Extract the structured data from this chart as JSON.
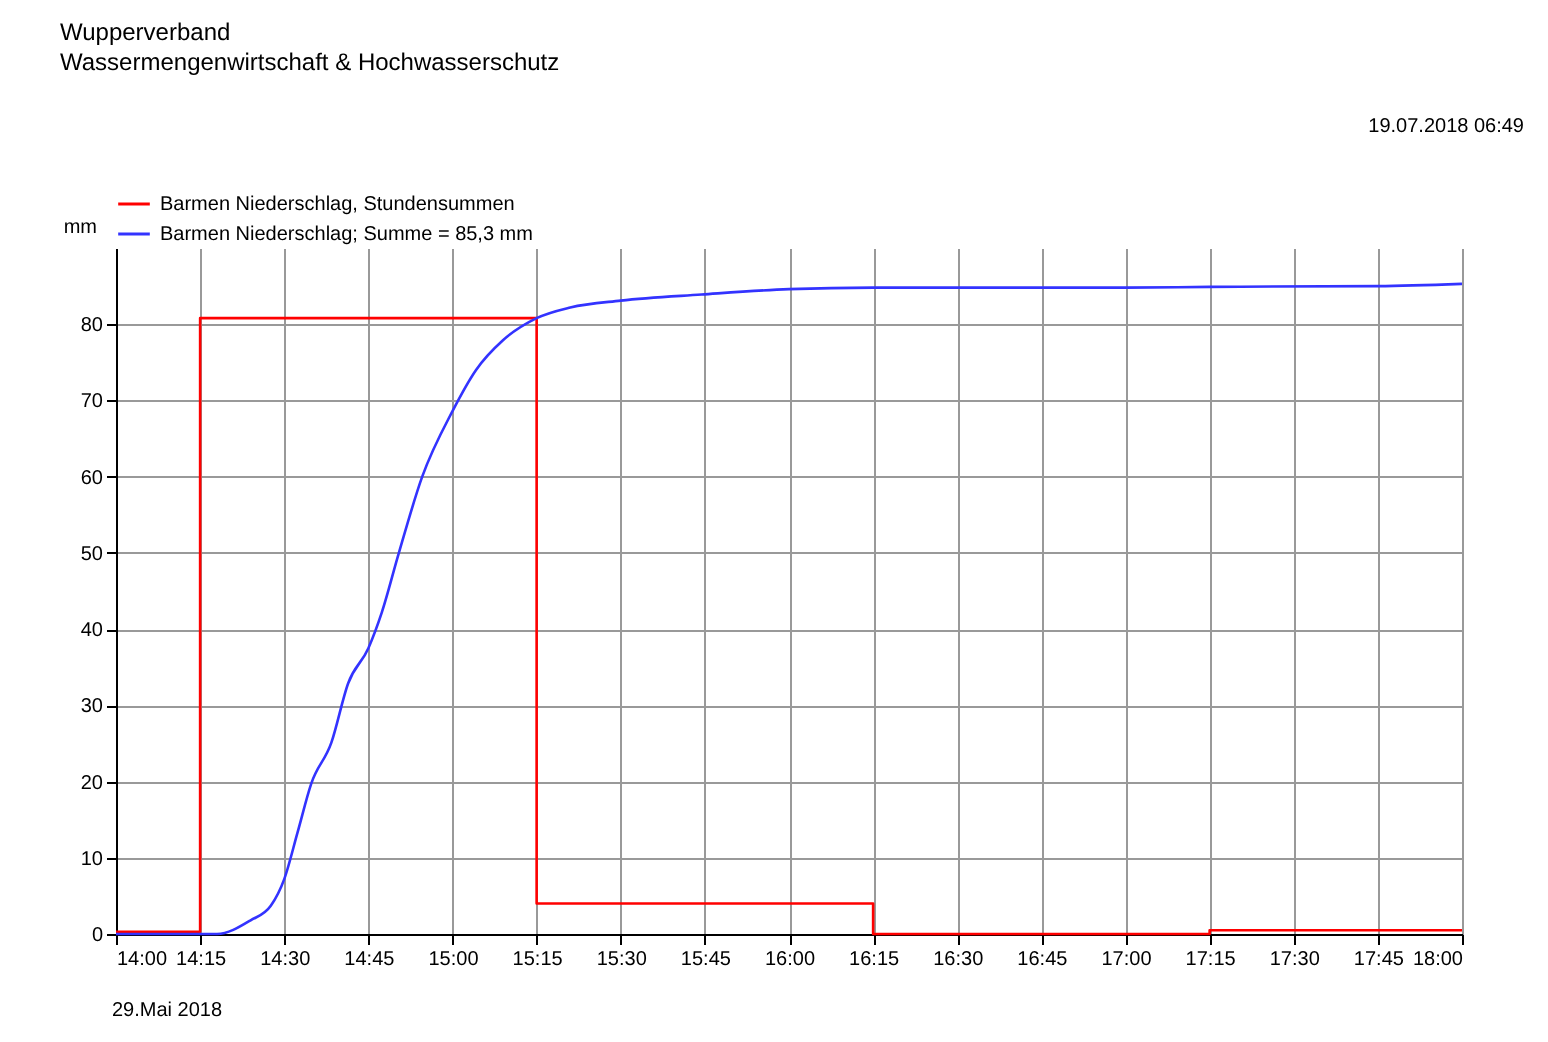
{
  "chart_data": {
    "type": "line",
    "title": "Wupperverband",
    "subtitle": "Wassermengenwirtschaft & Hochwasserschutz",
    "ylabel": "mm",
    "annotations": [
      "19.07.2018 06:49",
      "29.Mai 2018"
    ],
    "xlim": [
      14,
      18
    ],
    "ylim": [
      0,
      90
    ],
    "yticks": [
      0,
      10,
      20,
      30,
      40,
      50,
      60,
      70,
      80
    ],
    "xticks": [
      {
        "value": 14,
        "label": "14:00"
      },
      {
        "value": 14.25,
        "label": "14:15"
      },
      {
        "value": 14.5,
        "label": "14:30"
      },
      {
        "value": 14.75,
        "label": "14:45"
      },
      {
        "value": 15,
        "label": "15:00"
      },
      {
        "value": 15.25,
        "label": "15:15"
      },
      {
        "value": 15.5,
        "label": "15:30"
      },
      {
        "value": 15.75,
        "label": "15:45"
      },
      {
        "value": 16,
        "label": "16:00"
      },
      {
        "value": 16.25,
        "label": "16:15"
      },
      {
        "value": 16.5,
        "label": "16:30"
      },
      {
        "value": 16.75,
        "label": "16:45"
      },
      {
        "value": 17,
        "label": "17:00"
      },
      {
        "value": 17.25,
        "label": "17:15"
      },
      {
        "value": 17.5,
        "label": "17:30"
      },
      {
        "value": 17.75,
        "label": "17:45"
      },
      {
        "value": 18,
        "label": "18:00"
      }
    ],
    "grid": true,
    "legend": "top left",
    "series": [
      {
        "name": "Barmen Niederschlag, Stundensummen",
        "type": "step",
        "color": "#ff0000",
        "x": [
          14,
          14.25,
          15.25,
          16.25,
          17.25,
          18
        ],
        "values": [
          0.3,
          80.8,
          4.0,
          0,
          0.5,
          0.5
        ]
      },
      {
        "name": "Barmen Niederschlag; Summe = 85,3 mm",
        "type": "line",
        "color": "#3333ff",
        "x": [
          14,
          14.3,
          14.4,
          14.46,
          14.5,
          14.54,
          14.58,
          14.64,
          14.69,
          14.75,
          14.79,
          14.84,
          14.91,
          15,
          15.07,
          15.15,
          15.25,
          15.35,
          15.5,
          15.74,
          16,
          16.25,
          17,
          17.25,
          17.75,
          18
        ],
        "values": [
          0,
          0,
          1.8,
          3.7,
          7.2,
          13.4,
          19.7,
          25.1,
          32.9,
          37.5,
          42.2,
          49.9,
          60,
          68.6,
          74,
          77.9,
          80.8,
          82.2,
          83.1,
          83.9,
          84.6,
          84.8,
          84.8,
          84.9,
          85,
          85.3
        ]
      }
    ]
  }
}
